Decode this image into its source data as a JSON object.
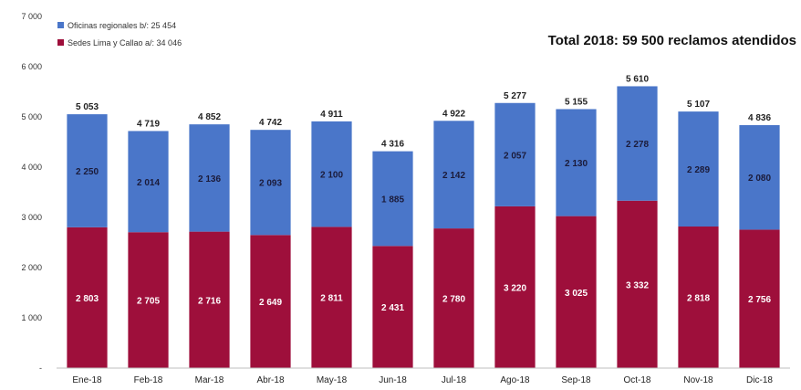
{
  "chart_data": {
    "type": "bar",
    "stacked": true,
    "title": "Total 2018: 59 500 reclamos atendidos",
    "categories": [
      "Ene-18",
      "Feb-18",
      "Mar-18",
      "Abr-18",
      "May-18",
      "Jun-18",
      "Jul-18",
      "Ago-18",
      "Sep-18",
      "Oct-18",
      "Nov-18",
      "Dic-18"
    ],
    "series": [
      {
        "name": "Sedes Lima y Callao a/: 34 046",
        "color": "#9e0f3b",
        "labels": [
          "2 803",
          "2 705",
          "2 716",
          "2 649",
          "2 811",
          "2 431",
          "2 780",
          "3 220",
          "3 025",
          "3 332",
          "2 818",
          "2 756"
        ],
        "values": [
          2803,
          2705,
          2716,
          2649,
          2811,
          2431,
          2780,
          3220,
          3025,
          3332,
          2818,
          2756
        ]
      },
      {
        "name": "Oficinas regionales b/: 25 454",
        "color": "#4a76c9",
        "labels": [
          "2 250",
          "2 014",
          "2 136",
          "2 093",
          "2 100",
          "1 885",
          "2 142",
          "2 057",
          "2 130",
          "2 278",
          "2 289",
          "2 080"
        ],
        "values": [
          2250,
          2014,
          2136,
          2093,
          2100,
          1885,
          2142,
          2057,
          2130,
          2278,
          2289,
          2080
        ]
      }
    ],
    "totals": [
      "5 053",
      "4 719",
      "4 852",
      "4 742",
      "4 911",
      "4 316",
      "4 922",
      "5 277",
      "5 155",
      "5 610",
      "5 107",
      "4 836"
    ],
    "total_values": [
      5053,
      4719,
      4852,
      4742,
      4911,
      4316,
      4922,
      5277,
      5155,
      5610,
      5107,
      4836
    ],
    "y_ticks": [
      "-",
      "1 000",
      "2 000",
      "3 000",
      "4 000",
      "5 000",
      "6 000",
      "7 000"
    ],
    "ylim": [
      0,
      7000
    ],
    "legend_position": "top-left",
    "grid": false
  }
}
